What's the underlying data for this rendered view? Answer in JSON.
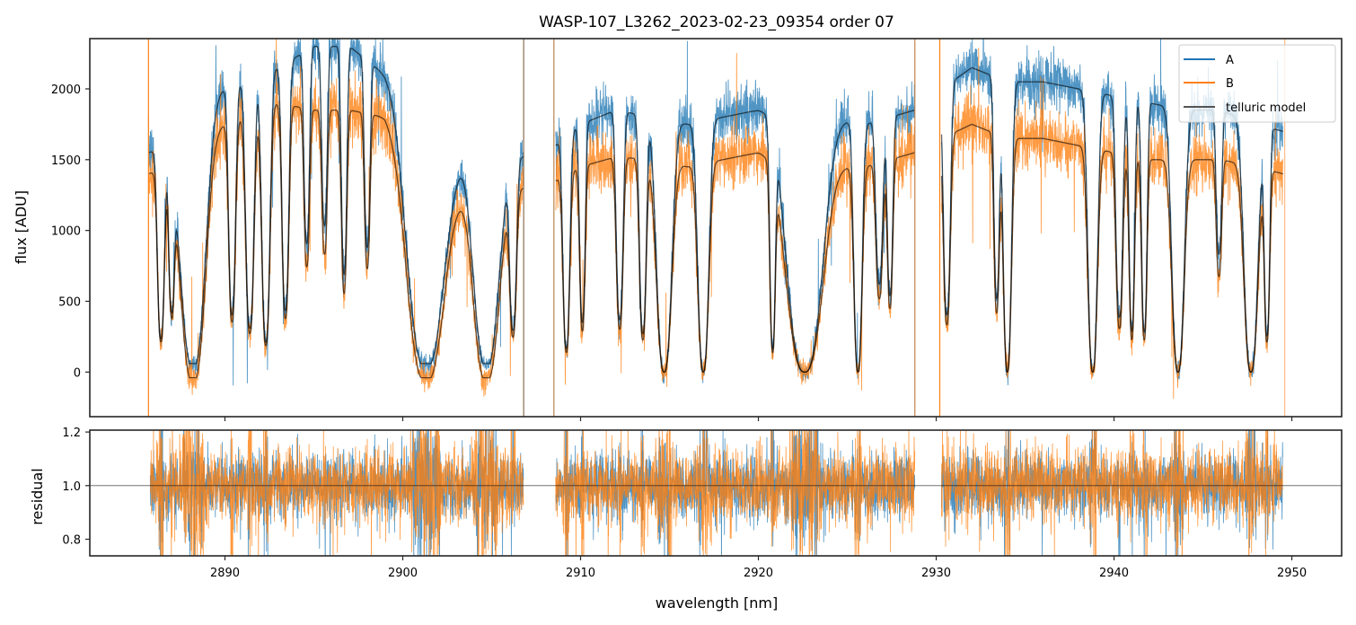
{
  "chart_data": [
    {
      "panel": "flux",
      "type": "line",
      "title": "WASP-107_L3262_2023-02-23_09354  order 07",
      "xlabel": "",
      "ylabel": "flux [ADU]",
      "xlim": [
        2882.4,
        2952.8
      ],
      "ylim": [
        -315,
        2355
      ],
      "yticks": [
        0,
        500,
        1000,
        1500,
        2000
      ],
      "ytick_labels": [
        "0",
        "500",
        "1000",
        "1500",
        "2000"
      ],
      "xticks": [
        2890,
        2900,
        2910,
        2920,
        2930,
        2940,
        2950
      ],
      "grid": false,
      "legend": {
        "location": "top-right",
        "entries": [
          "A",
          "B",
          "telluric model"
        ]
      },
      "series": [
        {
          "name": "A",
          "color": "#1f77b4",
          "style": "noisy spectrum",
          "continuum_peak_approx": 2150
        },
        {
          "name": "B",
          "color": "#ff7f0e",
          "style": "noisy spectrum",
          "continuum_peak_approx": 1750
        },
        {
          "name": "telluric model",
          "color": "#000000",
          "alpha": 0.6,
          "style": "model fit to A and B"
        }
      ],
      "segments_nm": [
        [
          2885.7,
          2906.8
        ],
        [
          2908.6,
          2928.8
        ],
        [
          2930.3,
          2949.5
        ]
      ],
      "telluric_continuum": {
        "x": [
          2885.7,
          2887.0,
          2889.0,
          2891.0,
          2893.0,
          2895.0,
          2897.0,
          2899.0,
          2901.0,
          2903.0,
          2905.0,
          2906.8,
          2908.6,
          2910.0,
          2912.0,
          2914.0,
          2916.0,
          2918.0,
          2920.0,
          2922.0,
          2924.0,
          2926.0,
          2928.8,
          2930.3,
          2932.0,
          2934.0,
          2936.0,
          2938.0,
          2940.0,
          2942.0,
          2944.0,
          2946.0,
          2948.0,
          2949.5
        ],
        "A": [
          1550,
          1600,
          1950,
          2050,
          2150,
          2300,
          2300,
          2100,
          1700,
          1500,
          1500,
          1520,
          1600,
          1750,
          1850,
          1800,
          1750,
          1800,
          1850,
          1850,
          1800,
          1750,
          1850,
          2000,
          2150,
          2050,
          2050,
          2000,
          1950,
          1900,
          1850,
          1850,
          1750,
          1700
        ],
        "B": [
          1400,
          1450,
          1700,
          1800,
          1900,
          1850,
          1850,
          1800,
          1400,
          1250,
          1200,
          1300,
          1350,
          1450,
          1520,
          1500,
          1450,
          1500,
          1550,
          1500,
          1450,
          1450,
          1550,
          1650,
          1750,
          1650,
          1650,
          1600,
          1550,
          1500,
          1500,
          1500,
          1450,
          1400
        ]
      },
      "absorption_bands_nm": [
        {
          "center": 2886.4,
          "width": 0.25,
          "depth": 0.85
        },
        {
          "center": 2887.0,
          "width": 0.2,
          "depth": 0.7
        },
        {
          "center": 2888.2,
          "width": 0.9,
          "depth": 1.02,
          "saturated_level": [
            60,
            -40
          ]
        },
        {
          "center": 2890.4,
          "width": 0.25,
          "depth": 0.8
        },
        {
          "center": 2891.4,
          "width": 0.3,
          "depth": 0.85
        },
        {
          "center": 2892.3,
          "width": 0.3,
          "depth": 0.9
        },
        {
          "center": 2893.4,
          "width": 0.25,
          "depth": 0.8
        },
        {
          "center": 2894.6,
          "width": 0.2,
          "depth": 0.6
        },
        {
          "center": 2895.6,
          "width": 0.2,
          "depth": 0.55
        },
        {
          "center": 2896.7,
          "width": 0.2,
          "depth": 0.7
        },
        {
          "center": 2898.0,
          "width": 0.2,
          "depth": 0.6
        },
        {
          "center": 2901.3,
          "width": 1.3,
          "depth": 1.02,
          "saturated_level": [
            60,
            -40
          ]
        },
        {
          "center": 2904.7,
          "width": 0.9,
          "depth": 1.02,
          "saturated_level": [
            60,
            -40
          ]
        },
        {
          "center": 2906.2,
          "width": 0.25,
          "depth": 0.8
        },
        {
          "center": 2909.2,
          "width": 0.25,
          "depth": 0.9
        },
        {
          "center": 2910.1,
          "width": 0.2,
          "depth": 0.8
        },
        {
          "center": 2912.2,
          "width": 0.25,
          "depth": 0.8
        },
        {
          "center": 2913.5,
          "width": 0.25,
          "depth": 0.85
        },
        {
          "center": 2914.7,
          "width": 0.55,
          "depth": 1.0,
          "saturated_level": [
            0,
            0
          ]
        },
        {
          "center": 2916.9,
          "width": 0.4,
          "depth": 1.0,
          "saturated_level": [
            0,
            0
          ]
        },
        {
          "center": 2920.8,
          "width": 0.2,
          "depth": 0.9
        },
        {
          "center": 2922.6,
          "width": 1.3,
          "depth": 1.0,
          "saturated_level": [
            0,
            0
          ]
        },
        {
          "center": 2925.6,
          "width": 0.3,
          "depth": 1.0
        },
        {
          "center": 2926.8,
          "width": 0.25,
          "depth": 0.65
        },
        {
          "center": 2927.4,
          "width": 0.2,
          "depth": 0.7
        },
        {
          "center": 2930.6,
          "width": 0.25,
          "depth": 0.8
        },
        {
          "center": 2933.4,
          "width": 0.2,
          "depth": 0.75
        },
        {
          "center": 2934.0,
          "width": 0.3,
          "depth": 1.0,
          "saturated_level": [
            0,
            0
          ]
        },
        {
          "center": 2938.8,
          "width": 0.35,
          "depth": 1.0,
          "saturated_level": [
            0,
            0
          ]
        },
        {
          "center": 2940.3,
          "width": 0.25,
          "depth": 0.8
        },
        {
          "center": 2941.0,
          "width": 0.2,
          "depth": 0.85
        },
        {
          "center": 2941.7,
          "width": 0.2,
          "depth": 0.85
        },
        {
          "center": 2943.6,
          "width": 0.45,
          "depth": 1.0,
          "saturated_level": [
            0,
            0
          ]
        },
        {
          "center": 2945.9,
          "width": 0.2,
          "depth": 0.55
        },
        {
          "center": 2947.7,
          "width": 0.5,
          "depth": 1.0,
          "saturated_level": [
            0,
            0
          ]
        },
        {
          "center": 2948.6,
          "width": 0.2,
          "depth": 0.85
        }
      ],
      "vertical_spikes_nm": [
        {
          "x": 2885.7,
          "color": "#ff7f0e"
        },
        {
          "x": 2906.8,
          "color": "#8c6d4f"
        },
        {
          "x": 2908.5,
          "color": "#b8834f"
        },
        {
          "x": 2928.8,
          "color": "#c4834a"
        },
        {
          "x": 2930.2,
          "color": "#ff7f0e"
        },
        {
          "x": 2949.6,
          "color": "#ffbb88"
        }
      ]
    },
    {
      "panel": "residual",
      "type": "line",
      "xlabel": "wavelength [nm]",
      "ylabel": "residual",
      "xlim": [
        2882.4,
        2952.8
      ],
      "ylim": [
        0.738,
        1.207
      ],
      "yticks": [
        0.8,
        1.0,
        1.2
      ],
      "ytick_labels": [
        "0.8",
        "1.0",
        "1.2"
      ],
      "xticks": [
        2890,
        2900,
        2910,
        2920,
        2930,
        2940,
        2950
      ],
      "xtick_labels": [
        "2890",
        "2900",
        "2910",
        "2920",
        "2930",
        "2940",
        "2950"
      ],
      "reference_line": 1.0,
      "grid": false,
      "series": [
        {
          "name": "A",
          "color": "#1f77b4",
          "center": 1.0,
          "scatter_approx": 0.06
        },
        {
          "name": "B",
          "color": "#ff7f0e",
          "center": 1.0,
          "scatter_approx": 0.07
        }
      ],
      "segments_nm": [
        [
          2885.8,
          2906.8
        ],
        [
          2908.6,
          2928.8
        ],
        [
          2930.3,
          2949.5
        ]
      ]
    }
  ],
  "legend": {
    "items": [
      {
        "label": "A",
        "color": "#1f77b4"
      },
      {
        "label": "B",
        "color": "#ff7f0e"
      },
      {
        "label": "telluric model",
        "color": "#555555"
      }
    ]
  }
}
